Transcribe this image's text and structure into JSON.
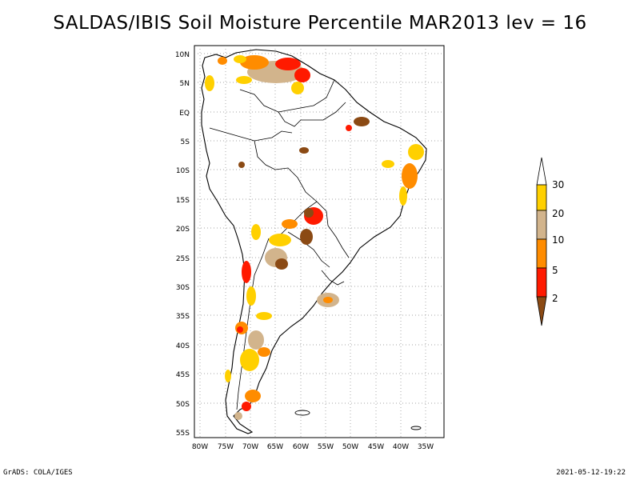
{
  "title": "SALDAS/IBIS Soil Moisture Percentile MAR2013 lev = 16",
  "footer": {
    "left": "GrADS: COLA/IGES",
    "right": "2021-05-12-19:22"
  },
  "map": {
    "lat_ticks": [
      "10N",
      "5N",
      "EQ",
      "5S",
      "10S",
      "15S",
      "20S",
      "25S",
      "30S",
      "35S",
      "40S",
      "45S",
      "50S",
      "55S"
    ],
    "lon_ticks": [
      "80W",
      "75W",
      "70W",
      "65W",
      "60W",
      "55W",
      "50W",
      "45W",
      "40W",
      "35W"
    ]
  },
  "legend": {
    "labels": [
      "2",
      "5",
      "10",
      "20",
      "30"
    ],
    "colors": {
      "brown": "#8b4a14",
      "red": "#ff1a00",
      "orange": "#ff8c00",
      "tan": "#d2b48c",
      "gold": "#ffd000",
      "white": "#ffffff"
    }
  }
}
